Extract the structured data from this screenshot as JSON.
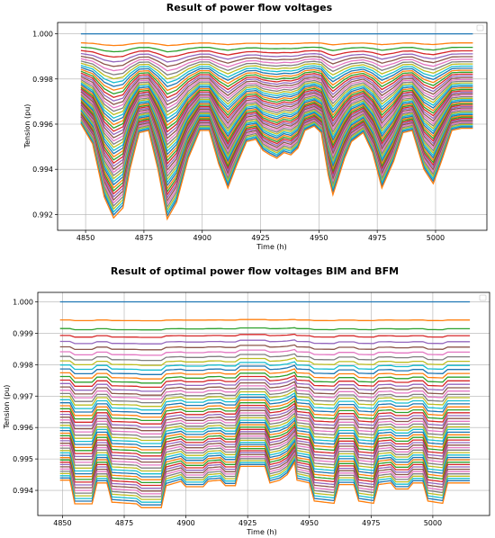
{
  "chart_data": [
    {
      "type": "line",
      "title": "Result of power flow voltages",
      "xlabel": "Time (h)",
      "ylabel": "Tension (pu)",
      "xlim": [
        4838,
        5022
      ],
      "ylim": [
        0.9913,
        1.0005
      ],
      "xticks": [
        4850,
        4875,
        4900,
        4925,
        4950,
        4975,
        5000
      ],
      "yticks": [
        0.992,
        0.994,
        0.996,
        0.998,
        1.0
      ],
      "ytick_labels": [
        "0.992",
        "0.994",
        "0.996",
        "0.998",
        "1.000"
      ],
      "grid": true,
      "legend": "top-right (empty)",
      "x_range": [
        4848,
        5016
      ],
      "n_series": 52,
      "colors": [
        "#1f77b4",
        "#ff7f0e",
        "#2ca02c",
        "#d62728",
        "#9467bd",
        "#8c564b",
        "#e377c2",
        "#7f7f7f",
        "#bcbd22",
        "#17becf"
      ],
      "depth_profile": [
        {
          "x": 4848,
          "d": 0.14
        },
        {
          "x": 4853,
          "d": 0.32
        },
        {
          "x": 4858,
          "d": 0.8
        },
        {
          "x": 4862,
          "d": 0.99
        },
        {
          "x": 4866,
          "d": 0.9
        },
        {
          "x": 4869,
          "d": 0.55
        },
        {
          "x": 4873,
          "d": 0.22
        },
        {
          "x": 4877,
          "d": 0.2
        },
        {
          "x": 4881,
          "d": 0.55
        },
        {
          "x": 4885,
          "d": 1.0
        },
        {
          "x": 4889,
          "d": 0.85
        },
        {
          "x": 4894,
          "d": 0.45
        },
        {
          "x": 4899,
          "d": 0.2
        },
        {
          "x": 4903,
          "d": 0.2
        },
        {
          "x": 4907,
          "d": 0.5
        },
        {
          "x": 4911,
          "d": 0.72
        },
        {
          "x": 4915,
          "d": 0.5
        },
        {
          "x": 4919,
          "d": 0.3
        },
        {
          "x": 4923,
          "d": 0.28
        },
        {
          "x": 4926,
          "d": 0.38
        },
        {
          "x": 4929,
          "d": 0.42
        },
        {
          "x": 4932,
          "d": 0.45
        },
        {
          "x": 4935,
          "d": 0.4
        },
        {
          "x": 4938,
          "d": 0.42
        },
        {
          "x": 4941,
          "d": 0.36
        },
        {
          "x": 4944,
          "d": 0.2
        },
        {
          "x": 4948,
          "d": 0.16
        },
        {
          "x": 4951,
          "d": 0.22
        },
        {
          "x": 4954,
          "d": 0.6
        },
        {
          "x": 4956,
          "d": 0.78
        },
        {
          "x": 4958,
          "d": 0.65
        },
        {
          "x": 4961,
          "d": 0.45
        },
        {
          "x": 4964,
          "d": 0.3
        },
        {
          "x": 4969,
          "d": 0.22
        },
        {
          "x": 4973,
          "d": 0.4
        },
        {
          "x": 4977,
          "d": 0.72
        },
        {
          "x": 4982,
          "d": 0.48
        },
        {
          "x": 4986,
          "d": 0.22
        },
        {
          "x": 4990,
          "d": 0.2
        },
        {
          "x": 4995,
          "d": 0.55
        },
        {
          "x": 4999,
          "d": 0.68
        },
        {
          "x": 5003,
          "d": 0.45
        },
        {
          "x": 5007,
          "d": 0.2
        },
        {
          "x": 5011,
          "d": 0.18
        },
        {
          "x": 5016,
          "d": 0.18
        }
      ],
      "series_summary": {
        "top_line_value": 1.0,
        "lowest_dip_value": 0.9917,
        "dip_centers": [
          4862,
          4885,
          4911,
          4956,
          4977,
          4999
        ]
      }
    },
    {
      "type": "line",
      "title": "Result of optimal power flow voltages BIM and BFM",
      "xlabel": "Time (h)",
      "ylabel": "Tension (pu)",
      "xlim": [
        4840,
        5023
      ],
      "ylim": [
        0.9932,
        1.0003
      ],
      "xticks": [
        4850,
        4875,
        4900,
        4925,
        4950,
        4975,
        5000
      ],
      "yticks": [
        0.994,
        0.995,
        0.996,
        0.997,
        0.998,
        0.999,
        1.0
      ],
      "ytick_labels": [
        "0.994",
        "0.995",
        "0.996",
        "0.997",
        "0.998",
        "0.999",
        "1.000"
      ],
      "grid": true,
      "legend": "top-right (empty)",
      "x_range": [
        4849,
        5015
      ],
      "n_series": 52,
      "colors": [
        "#1f77b4",
        "#ff7f0e",
        "#2ca02c",
        "#d62728",
        "#9467bd",
        "#8c564b",
        "#e377c2",
        "#7f7f7f",
        "#bcbd22",
        "#17becf"
      ],
      "depth_profile": [
        {
          "x": 4849,
          "d": 0.5
        },
        {
          "x": 4853,
          "d": 0.5
        },
        {
          "x": 4855,
          "d": 0.93
        },
        {
          "x": 4862,
          "d": 0.93
        },
        {
          "x": 4864,
          "d": 0.55
        },
        {
          "x": 4868,
          "d": 0.55
        },
        {
          "x": 4870,
          "d": 0.9
        },
        {
          "x": 4880,
          "d": 0.93
        },
        {
          "x": 4882,
          "d": 1.0
        },
        {
          "x": 4890,
          "d": 1.0
        },
        {
          "x": 4892,
          "d": 0.6
        },
        {
          "x": 4898,
          "d": 0.52
        },
        {
          "x": 4900,
          "d": 0.62
        },
        {
          "x": 4907,
          "d": 0.62
        },
        {
          "x": 4909,
          "d": 0.52
        },
        {
          "x": 4914,
          "d": 0.5
        },
        {
          "x": 4916,
          "d": 0.6
        },
        {
          "x": 4920,
          "d": 0.6
        },
        {
          "x": 4922,
          "d": 0.25
        },
        {
          "x": 4932,
          "d": 0.25
        },
        {
          "x": 4934,
          "d": 0.55
        },
        {
          "x": 4938,
          "d": 0.5
        },
        {
          "x": 4941,
          "d": 0.4
        },
        {
          "x": 4944,
          "d": 0.18
        },
        {
          "x": 4945,
          "d": 0.5
        },
        {
          "x": 4950,
          "d": 0.55
        },
        {
          "x": 4952,
          "d": 0.88
        },
        {
          "x": 4960,
          "d": 0.92
        },
        {
          "x": 4962,
          "d": 0.58
        },
        {
          "x": 4968,
          "d": 0.58
        },
        {
          "x": 4970,
          "d": 0.88
        },
        {
          "x": 4976,
          "d": 0.92
        },
        {
          "x": 4978,
          "d": 0.58
        },
        {
          "x": 4983,
          "d": 0.55
        },
        {
          "x": 4985,
          "d": 0.66
        },
        {
          "x": 4990,
          "d": 0.66
        },
        {
          "x": 4992,
          "d": 0.55
        },
        {
          "x": 4996,
          "d": 0.55
        },
        {
          "x": 4998,
          "d": 0.88
        },
        {
          "x": 5004,
          "d": 0.92
        },
        {
          "x": 5006,
          "d": 0.55
        },
        {
          "x": 5015,
          "d": 0.55
        }
      ],
      "series_summary": {
        "top_line_value": 1.0,
        "lowest_dip_value": 0.9934,
        "step_changes": [
          4853,
          4862,
          4868,
          4880,
          4890,
          4898,
          4907,
          4914,
          4920,
          4932,
          4944,
          4950,
          4960,
          4968,
          4976,
          4983,
          4990,
          4996,
          5004
        ]
      }
    }
  ]
}
